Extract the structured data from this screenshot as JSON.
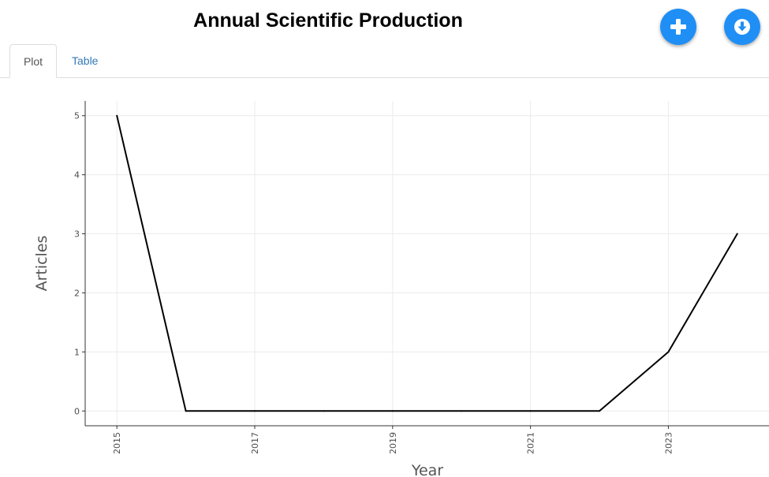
{
  "header": {
    "title": "Annual Scientific Production",
    "add_icon": "plus-icon",
    "download_icon": "download-icon",
    "accent_color": "#1f8ff5"
  },
  "tabs": [
    {
      "label": "Plot",
      "active": true
    },
    {
      "label": "Table",
      "active": false
    }
  ],
  "chart_data": {
    "type": "line",
    "title": "",
    "xlabel": "Year",
    "ylabel": "Articles",
    "x": [
      2015,
      2016,
      2017,
      2018,
      2019,
      2020,
      2021,
      2022,
      2023,
      2024
    ],
    "values": [
      5,
      0,
      0,
      0,
      0,
      0,
      0,
      0,
      1,
      3
    ],
    "xticks": [
      2015,
      2017,
      2019,
      2021,
      2023
    ],
    "yticks": [
      0,
      1,
      2,
      3,
      4,
      5
    ],
    "xlim": [
      2014.54,
      2024.46
    ],
    "ylim": [
      -0.25,
      5.25
    ],
    "grid": true,
    "line_color": "#000000",
    "legend": "none"
  }
}
